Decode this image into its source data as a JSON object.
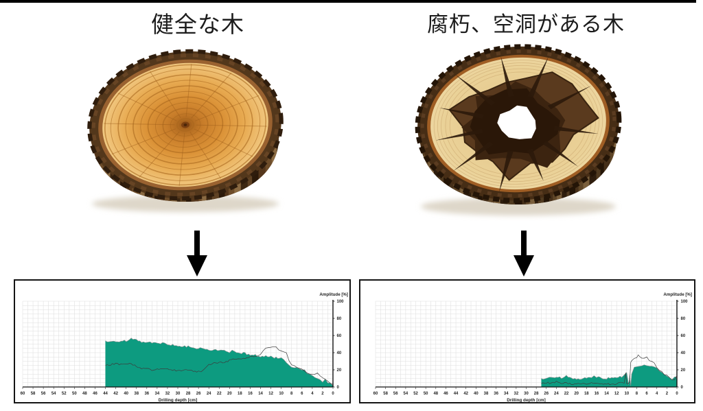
{
  "page": {
    "background": "#ffffff",
    "top_bar_color": "#000000",
    "accent_color": "#0d9b80",
    "arrow_color": "#000000"
  },
  "left_column": {
    "title": "健全な木",
    "image": "healthy-log-cross-section"
  },
  "right_column": {
    "title": "腐朽、空洞がある木",
    "image": "decayed-hollow-log-cross-section"
  },
  "chart_data": [
    {
      "type": "area",
      "panel": "healthy",
      "title": "",
      "xlabel": "Drilling depth [cm]",
      "ylabel": "Amplitude [%]",
      "x_axis": {
        "min": 0,
        "max": 60,
        "reversed": true,
        "tick_step": 2,
        "tick_labels": [
          "60",
          "58",
          "56",
          "54",
          "52",
          "50",
          "48",
          "46",
          "44",
          "42",
          "40",
          "38",
          "36",
          "34",
          "32",
          "30",
          "28",
          "26",
          "24",
          "22",
          "20",
          "18",
          "16",
          "14",
          "12",
          "10",
          "8",
          "6",
          "4",
          "2",
          "0"
        ]
      },
      "y_axis": {
        "min": 0,
        "max": 100,
        "tick_labels": [
          "0",
          "20",
          "40",
          "60",
          "80",
          "100"
        ]
      },
      "grid": {
        "x_minor_step": 1,
        "y_minor_step": 5
      },
      "legend": "none",
      "series": [
        {
          "name": "amplitude",
          "type": "filled_area",
          "color": "#0d9b80",
          "edge_color": "#8f8f8f",
          "points": [
            [
              44,
              54
            ],
            [
              43,
              53.5
            ],
            [
              42,
              53
            ],
            [
              41,
              54
            ],
            [
              40,
              54
            ],
            [
              39,
              56
            ],
            [
              38,
              54.5
            ],
            [
              37,
              53
            ],
            [
              36,
              53
            ],
            [
              35,
              52
            ],
            [
              34,
              52
            ],
            [
              33,
              51
            ],
            [
              32,
              50
            ],
            [
              31,
              49
            ],
            [
              30,
              48
            ],
            [
              29,
              47.5
            ],
            [
              28,
              47
            ],
            [
              27,
              46
            ],
            [
              26,
              45
            ],
            [
              25,
              44.5
            ],
            [
              24,
              44
            ],
            [
              23,
              43
            ],
            [
              22,
              42.5
            ],
            [
              21,
              42
            ],
            [
              20,
              41
            ],
            [
              19.5,
              42
            ],
            [
              19,
              41
            ],
            [
              18,
              40
            ],
            [
              17,
              39
            ],
            [
              16,
              38
            ],
            [
              15,
              37
            ],
            [
              14,
              36
            ],
            [
              13,
              35.5
            ],
            [
              12,
              35
            ],
            [
              11,
              34
            ],
            [
              10,
              33
            ],
            [
              9.5,
              31
            ],
            [
              9,
              29
            ],
            [
              8.5,
              25
            ],
            [
              8,
              23
            ],
            [
              7.5,
              23
            ],
            [
              7,
              22
            ],
            [
              6.5,
              21
            ],
            [
              6,
              20
            ],
            [
              5.5,
              19
            ],
            [
              5,
              17
            ],
            [
              4.5,
              15
            ],
            [
              4,
              14
            ],
            [
              3.5,
              12
            ],
            [
              3,
              10
            ],
            [
              2.5,
              8
            ],
            [
              2,
              6.5
            ],
            [
              1.5,
              8
            ],
            [
              1,
              5
            ],
            [
              0.5,
              4
            ],
            [
              0,
              1.5
            ]
          ]
        },
        {
          "name": "feed",
          "type": "line",
          "color": "#3c3c3c",
          "points": [
            [
              44,
              25
            ],
            [
              43,
              26
            ],
            [
              42,
              27
            ],
            [
              41,
              26
            ],
            [
              40,
              27
            ],
            [
              39,
              27
            ],
            [
              38,
              24
            ],
            [
              37,
              22
            ],
            [
              36,
              21
            ],
            [
              35,
              20
            ],
            [
              34,
              21
            ],
            [
              33,
              21
            ],
            [
              32,
              21
            ],
            [
              31,
              20
            ],
            [
              30,
              19
            ],
            [
              29,
              20
            ],
            [
              28,
              19
            ],
            [
              27,
              19
            ],
            [
              26,
              18
            ],
            [
              25.5,
              17
            ],
            [
              25,
              20
            ],
            [
              24.5,
              23
            ],
            [
              24,
              26
            ],
            [
              23,
              28
            ],
            [
              22,
              28
            ],
            [
              21,
              29
            ],
            [
              20,
              31
            ],
            [
              19,
              33
            ],
            [
              18,
              33
            ],
            [
              17,
              34
            ],
            [
              16,
              35
            ],
            [
              15,
              35
            ],
            [
              14.5,
              37
            ],
            [
              14,
              38
            ],
            [
              13.5,
              42
            ],
            [
              13,
              45
            ],
            [
              12.5,
              46
            ],
            [
              12,
              47
            ],
            [
              11.5,
              47
            ],
            [
              11,
              46
            ],
            [
              10.5,
              44
            ],
            [
              10,
              43
            ],
            [
              9.5,
              41
            ],
            [
              9,
              39
            ],
            [
              8.5,
              31
            ],
            [
              8,
              26
            ],
            [
              7.5,
              24
            ],
            [
              7,
              23
            ],
            [
              6.5,
              21
            ],
            [
              6,
              20
            ],
            [
              5.5,
              18
            ],
            [
              5,
              16
            ],
            [
              4.5,
              15
            ],
            [
              4,
              15
            ],
            [
              3.5,
              14
            ],
            [
              3,
              16
            ],
            [
              2.5,
              13
            ],
            [
              2,
              10
            ],
            [
              1.5,
              8
            ],
            [
              1,
              7
            ],
            [
              0.5,
              5
            ],
            [
              0,
              3
            ]
          ]
        }
      ]
    },
    {
      "type": "area",
      "panel": "decayed",
      "title": "",
      "xlabel": "Drilling depth [cm]",
      "ylabel": "Amplitude [%]",
      "x_axis": {
        "min": 0,
        "max": 60,
        "reversed": true,
        "tick_step": 2,
        "tick_labels": [
          "60",
          "58",
          "56",
          "54",
          "52",
          "50",
          "48",
          "46",
          "44",
          "42",
          "40",
          "38",
          "36",
          "34",
          "32",
          "30",
          "28",
          "26",
          "24",
          "22",
          "20",
          "18",
          "16",
          "14",
          "12",
          "10",
          "8",
          "6",
          "4",
          "2",
          "0"
        ]
      },
      "y_axis": {
        "min": 0,
        "max": 100,
        "tick_labels": [
          "0",
          "20",
          "40",
          "60",
          "80",
          "100"
        ]
      },
      "grid": {
        "x_minor_step": 1,
        "y_minor_step": 5
      },
      "legend": "none",
      "series": [
        {
          "name": "amplitude",
          "type": "filled_area",
          "color": "#0d9b80",
          "edge_color": "#8f8f8f",
          "points": [
            [
              27,
              10
            ],
            [
              26,
              10.5
            ],
            [
              25,
              11.5
            ],
            [
              24,
              12
            ],
            [
              23,
              11
            ],
            [
              22,
              12.5
            ],
            [
              21,
              9.5
            ],
            [
              20,
              10
            ],
            [
              19,
              10
            ],
            [
              18,
              11
            ],
            [
              17,
              11.5
            ],
            [
              16.5,
              14
            ],
            [
              16,
              12
            ],
            [
              15,
              10
            ],
            [
              14,
              10
            ],
            [
              13,
              11
            ],
            [
              12,
              11.5
            ],
            [
              11,
              12
            ],
            [
              10.5,
              13
            ],
            [
              10,
              17
            ],
            [
              9.6,
              3
            ],
            [
              9.4,
              14
            ],
            [
              9.2,
              2
            ],
            [
              9,
              16
            ],
            [
              8.7,
              20
            ],
            [
              8.5,
              22
            ],
            [
              8,
              23
            ],
            [
              7.5,
              24
            ],
            [
              7,
              25
            ],
            [
              6.5,
              26
            ],
            [
              6,
              26
            ],
            [
              5.5,
              25.5
            ],
            [
              5,
              25
            ],
            [
              4.5,
              23
            ],
            [
              4,
              21
            ],
            [
              3.5,
              19
            ],
            [
              3,
              17
            ],
            [
              2.5,
              14
            ],
            [
              2,
              12
            ],
            [
              1.5,
              10
            ],
            [
              1,
              8.5
            ],
            [
              0.5,
              12
            ],
            [
              0.2,
              13
            ],
            [
              0,
              9
            ]
          ]
        },
        {
          "name": "feed",
          "type": "line",
          "color": "#3c3c3c",
          "points": [
            [
              27,
              4
            ],
            [
              26,
              5
            ],
            [
              25,
              4
            ],
            [
              24,
              6
            ],
            [
              23,
              4
            ],
            [
              22,
              5
            ],
            [
              21,
              3
            ],
            [
              20,
              4.5
            ],
            [
              19,
              3
            ],
            [
              18,
              4
            ],
            [
              17,
              5
            ],
            [
              16,
              4
            ],
            [
              15,
              3.5
            ],
            [
              14,
              4
            ],
            [
              13,
              3
            ],
            [
              12,
              4
            ],
            [
              11,
              5
            ],
            [
              10.5,
              4
            ],
            [
              10.2,
              16
            ],
            [
              10,
              5
            ],
            [
              9.7,
              4
            ],
            [
              9.4,
              7
            ],
            [
              9.2,
              28
            ],
            [
              9,
              30
            ],
            [
              8.5,
              33
            ],
            [
              8,
              34
            ],
            [
              7.7,
              37
            ],
            [
              7.4,
              36
            ],
            [
              7,
              34
            ],
            [
              6.5,
              33
            ],
            [
              6,
              35
            ],
            [
              5.5,
              31
            ],
            [
              5,
              29
            ],
            [
              4.5,
              27
            ],
            [
              4,
              23
            ],
            [
              3.5,
              20
            ],
            [
              3,
              18
            ],
            [
              2.5,
              15
            ],
            [
              2,
              13
            ],
            [
              1.5,
              11
            ],
            [
              1,
              8
            ],
            [
              0.5,
              9
            ],
            [
              0,
              13
            ]
          ]
        }
      ]
    }
  ]
}
